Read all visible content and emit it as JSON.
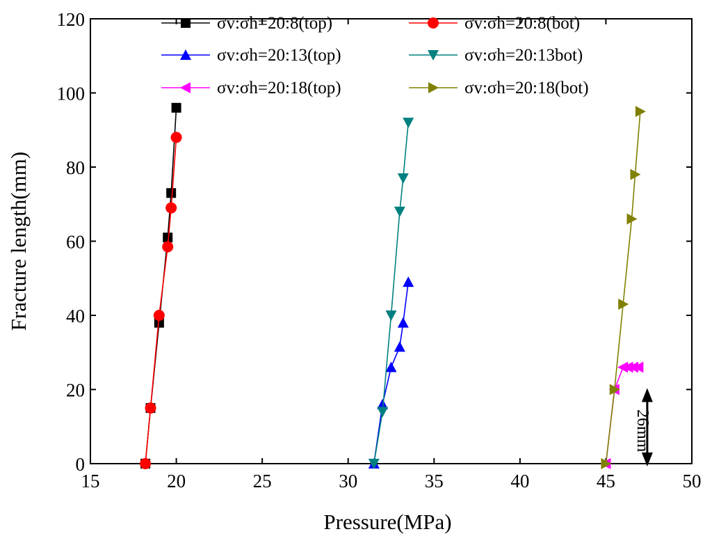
{
  "chart_data": {
    "type": "line",
    "title": "",
    "xlabel": "Pressure(MPa)",
    "ylabel": "Fracture length(mm)",
    "xlim": [
      15,
      50
    ],
    "ylim": [
      0,
      120
    ],
    "xticks": [
      15,
      20,
      25,
      30,
      35,
      40,
      45,
      50
    ],
    "yticks": [
      0,
      20,
      40,
      60,
      80,
      100,
      120
    ],
    "legend_position": "top",
    "series": [
      {
        "name": "σv:σh=20:8(top)",
        "color": "#000000",
        "marker": "square",
        "x": [
          18.2,
          18.5,
          19.0,
          19.5,
          19.7,
          20.0
        ],
        "y": [
          0,
          15,
          38,
          61,
          73,
          96
        ]
      },
      {
        "name": "σv:σh=20:8(bot)",
        "color": "#ff0000",
        "marker": "circle",
        "x": [
          18.2,
          18.5,
          19.0,
          19.5,
          19.7,
          20.0
        ],
        "y": [
          0,
          15,
          40,
          58.5,
          69,
          88
        ]
      },
      {
        "name": "σv:σh=20:13(top)",
        "color": "#0000ff",
        "marker": "triangle-up",
        "x": [
          31.5,
          32.0,
          32.5,
          33.0,
          33.2,
          33.5
        ],
        "y": [
          0,
          16,
          26,
          31.5,
          38,
          49
        ]
      },
      {
        "name": "σv:σh=20:13bot)",
        "color": "#008080",
        "marker": "triangle-down",
        "x": [
          31.5,
          32.0,
          32.5,
          33.0,
          33.2,
          33.5
        ],
        "y": [
          0,
          14,
          40,
          68,
          77,
          92
        ]
      },
      {
        "name": "σv:σh=20:18(top)",
        "color": "#ff00ff",
        "marker": "triangle-left",
        "x": [
          45.0,
          45.5,
          46.0,
          46.3,
          46.6,
          46.9
        ],
        "y": [
          0,
          20,
          26,
          26,
          26,
          26
        ]
      },
      {
        "name": "σv:σh=20:18(bot)",
        "color": "#808000",
        "marker": "triangle-right",
        "x": [
          45.0,
          45.5,
          46.0,
          46.5,
          46.7,
          47.0
        ],
        "y": [
          0,
          20,
          43,
          66,
          78,
          95
        ]
      }
    ],
    "annotations": [
      {
        "text": "26mm",
        "x": 47.0,
        "y_from": 0,
        "y_to": 20,
        "style": "double-arrow",
        "orientation": "vertical"
      }
    ]
  }
}
